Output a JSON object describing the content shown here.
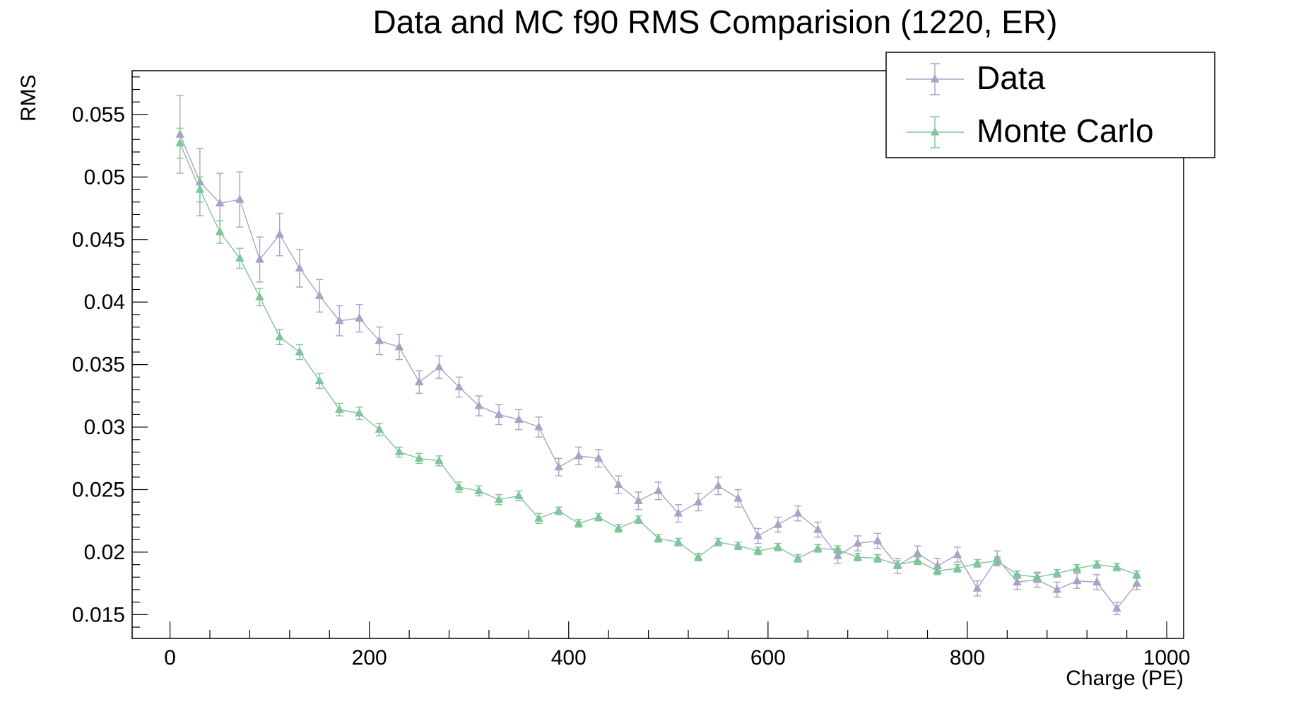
{
  "chart_data": {
    "type": "scatter",
    "title": "Data and MC f90 RMS Comparision (1220, ER)",
    "xlabel": "Charge (PE)",
    "ylabel": "RMS",
    "xlim": [
      -38,
      1017
    ],
    "ylim": [
      0.0131,
      0.0585
    ],
    "xticks": [
      0,
      200,
      400,
      600,
      800,
      1000
    ],
    "xtick_labels": [
      "0",
      "200",
      "400",
      "600",
      "800",
      "1000"
    ],
    "yticks": [
      0.015,
      0.02,
      0.025,
      0.03,
      0.035,
      0.04,
      0.045,
      0.05,
      0.055
    ],
    "ytick_labels": [
      "0.015",
      "0.02",
      "0.025",
      "0.03",
      "0.035",
      "0.04",
      "0.045",
      "0.05",
      "0.055"
    ],
    "grid": false,
    "legend_position": "top-right",
    "x": [
      10,
      30,
      50,
      70,
      90,
      110,
      130,
      150,
      170,
      190,
      210,
      230,
      250,
      270,
      290,
      310,
      330,
      350,
      370,
      390,
      410,
      430,
      450,
      470,
      490,
      510,
      530,
      550,
      570,
      590,
      610,
      630,
      650,
      670,
      690,
      710,
      730,
      750,
      770,
      790,
      810,
      830,
      850,
      870,
      890,
      910,
      930,
      950,
      970
    ],
    "series": [
      {
        "name": "Data",
        "color": "#a7a3c5",
        "marker": "triangle",
        "values": [
          0.0534,
          0.0496,
          0.0479,
          0.0482,
          0.0434,
          0.0454,
          0.0427,
          0.0405,
          0.0385,
          0.0387,
          0.0369,
          0.0364,
          0.0336,
          0.0348,
          0.0332,
          0.0317,
          0.031,
          0.0306,
          0.03,
          0.0268,
          0.0277,
          0.0275,
          0.0254,
          0.0241,
          0.0249,
          0.0231,
          0.024,
          0.0253,
          0.0243,
          0.0213,
          0.0222,
          0.0231,
          0.0218,
          0.0197,
          0.0207,
          0.0209,
          0.0189,
          0.0199,
          0.0189,
          0.0198,
          0.0171,
          0.0195,
          0.0176,
          0.0178,
          0.017,
          0.0177,
          0.0176,
          0.0155,
          0.0175
        ],
        "errors": [
          0.0031,
          0.0027,
          0.0024,
          0.0022,
          0.0018,
          0.0017,
          0.0015,
          0.0013,
          0.0012,
          0.0011,
          0.0011,
          0.001,
          0.0009,
          0.0009,
          0.0008,
          0.0008,
          0.0008,
          0.0008,
          0.0008,
          0.0007,
          0.0007,
          0.0007,
          0.0007,
          0.0007,
          0.0007,
          0.0007,
          0.0007,
          0.0007,
          0.0007,
          0.0006,
          0.0006,
          0.0006,
          0.0006,
          0.0006,
          0.0006,
          0.0006,
          0.0006,
          0.0006,
          0.0006,
          0.0006,
          0.0006,
          0.0006,
          0.0006,
          0.0006,
          0.0006,
          0.0006,
          0.0006,
          0.0005,
          0.0005
        ]
      },
      {
        "name": "Monte Carlo",
        "color": "#80c49b",
        "marker": "triangle",
        "values": [
          0.0527,
          0.049,
          0.0456,
          0.0435,
          0.0404,
          0.0372,
          0.036,
          0.0337,
          0.0314,
          0.0311,
          0.0298,
          0.028,
          0.0275,
          0.0273,
          0.0252,
          0.0249,
          0.0242,
          0.0245,
          0.0227,
          0.0233,
          0.0223,
          0.0228,
          0.0219,
          0.0226,
          0.0211,
          0.0208,
          0.0196,
          0.0208,
          0.0205,
          0.0201,
          0.0204,
          0.0195,
          0.0203,
          0.0202,
          0.0196,
          0.0195,
          0.019,
          0.0193,
          0.0185,
          0.0187,
          0.0191,
          0.0193,
          0.0182,
          0.018,
          0.0183,
          0.0187,
          0.019,
          0.0188,
          0.0182
        ],
        "errors": [
          0.0012,
          0.001,
          0.0009,
          0.0008,
          0.0007,
          0.0006,
          0.0006,
          0.0006,
          0.0005,
          0.0005,
          0.0005,
          0.0004,
          0.0004,
          0.0004,
          0.0004,
          0.0004,
          0.0004,
          0.0004,
          0.0004,
          0.0003,
          0.0003,
          0.0003,
          0.0003,
          0.0003,
          0.0003,
          0.0003,
          0.0003,
          0.0003,
          0.0003,
          0.0003,
          0.0003,
          0.0003,
          0.0003,
          0.0003,
          0.0003,
          0.0003,
          0.0003,
          0.0003,
          0.0003,
          0.0003,
          0.0003,
          0.0003,
          0.0003,
          0.0003,
          0.0003,
          0.0003,
          0.0003,
          0.0003,
          0.0003
        ]
      }
    ]
  }
}
